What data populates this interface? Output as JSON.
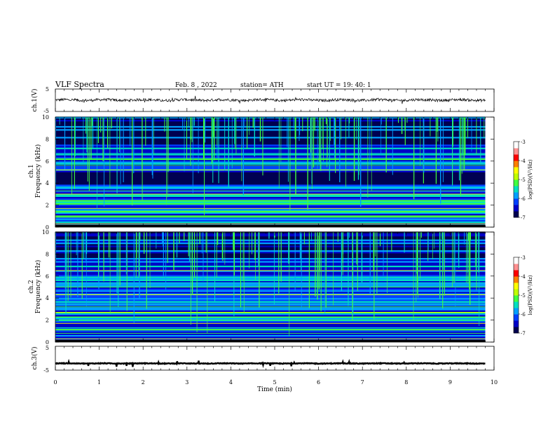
{
  "header": {
    "title": "VLF  Spectra",
    "date": "Feb. 8  , 2022",
    "station": "station= ATH",
    "start": "start  UT  =    19: 40: 1"
  },
  "chart_data": [
    {
      "id": "ch1-waveform",
      "type": "line",
      "ylabel": "ch.1(V)",
      "ylim": [
        -5,
        5
      ],
      "yticks": [
        "5",
        "-5"
      ],
      "xlim": [
        0,
        10
      ],
      "xdata_max": 9.8,
      "series": [
        {
          "level": 0.1,
          "noise": 0.6,
          "color": "#000000"
        }
      ]
    },
    {
      "id": "ch1-spectrogram",
      "type": "heatmap",
      "ylabel": "ch.1\nFrequency (kHz)",
      "ylim": [
        0,
        10
      ],
      "yticks": [
        "0",
        "2",
        "4",
        "6",
        "8",
        "10"
      ],
      "xlim": [
        0,
        10
      ],
      "xdata_max": 9.8,
      "colorbar": {
        "label": "log(PSD)(V²/Hz)",
        "range": [
          -7,
          -3
        ],
        "ticks": [
          "-3",
          "-4",
          "-5",
          "-6",
          "-7"
        ]
      }
    },
    {
      "id": "ch2-spectrogram",
      "type": "heatmap",
      "ylabel": "ch.2\nFrequency (kHz)",
      "ylim": [
        0,
        10
      ],
      "yticks": [
        "0",
        "2",
        "4",
        "6",
        "8",
        "10"
      ],
      "xlim": [
        0,
        10
      ],
      "xdata_max": 9.8,
      "colorbar": {
        "label": "log(PSD)(V²/Hz)",
        "range": [
          -7,
          -3
        ],
        "ticks": [
          "-3",
          "-4",
          "-5",
          "-6",
          "-7"
        ]
      }
    },
    {
      "id": "ch3-waveform",
      "type": "line",
      "ylabel": "ch.3(V)",
      "ylim": [
        -5,
        5
      ],
      "yticks": [
        "5",
        "-5"
      ],
      "xlim": [
        0,
        10
      ],
      "xdata_max": 9.8,
      "xlabel": "Time  (min)",
      "xticks": [
        "0",
        "1",
        "2",
        "3",
        "4",
        "5",
        "6",
        "7",
        "8",
        "9",
        "10"
      ],
      "series": [
        {
          "level": -2.2,
          "noise": 0.15,
          "color": "#000000"
        }
      ]
    }
  ],
  "colors": {
    "colormap": [
      "#000050",
      "#0000c8",
      "#0040ff",
      "#00a0ff",
      "#00e0c0",
      "#40ff40",
      "#c0ff00",
      "#ffff00",
      "#ff8000",
      "#ff0000",
      "#ff9090",
      "#ffffff"
    ]
  }
}
